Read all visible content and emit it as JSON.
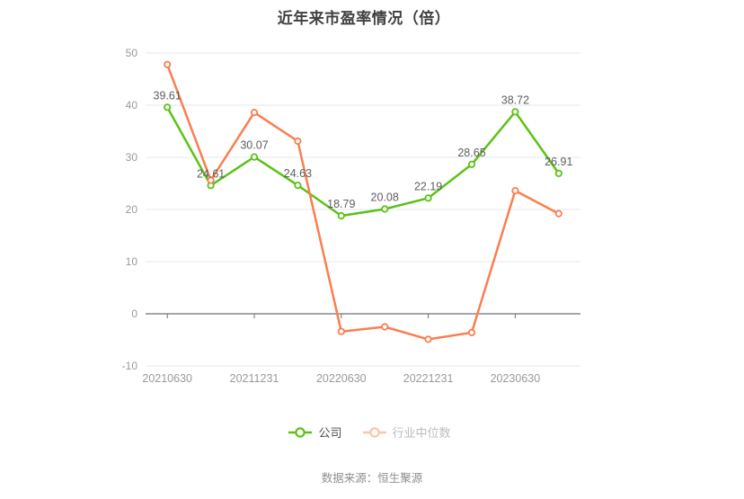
{
  "title": "近年来市盈率情况（倍）",
  "footer": {
    "source_text": "数据来源：恒生聚源"
  },
  "colors": {
    "company": "#5bc217",
    "industry": "#fa7e50",
    "legend_industry_dim": "#f9c6a4",
    "grid_line": "#e2e8f2",
    "axis_line": "#6e7079",
    "tick_text": "#999999",
    "data_label": "#5e5e5e"
  },
  "chart_data": {
    "type": "line",
    "title": "近年来市盈率情况（倍）",
    "x_tick_labels": [
      "20210630",
      "20211231",
      "20220630",
      "20221231",
      "20230630"
    ],
    "labeled_point_indices": [
      0,
      2,
      4,
      6,
      8
    ],
    "n_points": 10,
    "series": [
      {
        "id": "company",
        "name": "公司",
        "color": "#5bc217",
        "labels_shown": true,
        "values": [
          39.61,
          24.61,
          30.07,
          24.63,
          18.79,
          20.08,
          22.19,
          28.65,
          38.72,
          26.91
        ]
      },
      {
        "id": "industry-median",
        "name": "行业中位数",
        "color": "#fa7e50",
        "labels_shown": false,
        "values": [
          47.8,
          25.6,
          38.6,
          33.1,
          -3.4,
          -2.5,
          -4.9,
          -3.6,
          23.6,
          19.2
        ]
      }
    ],
    "ylim": [
      -10,
      50
    ],
    "y_ticks": [
      -10,
      0,
      10,
      20,
      30,
      40,
      50
    ],
    "grid": true,
    "legend_position": "bottom",
    "marker": "open-circle"
  }
}
